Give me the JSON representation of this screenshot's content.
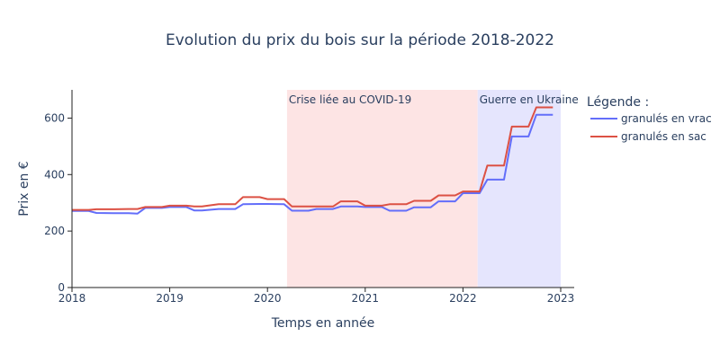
{
  "chart_data": {
    "type": "line",
    "title": "Evolution du prix du bois sur la période 2018-2022",
    "xlabel": "Temps en année",
    "ylabel": "Prix en €",
    "xlim": [
      2018,
      2023
    ],
    "ylim": [
      0,
      700
    ],
    "x_ticks": [
      2018,
      2019,
      2020,
      2021,
      2022,
      2023
    ],
    "x_tick_labels": [
      "2018",
      "2019",
      "2020",
      "2021",
      "2022",
      "2023"
    ],
    "y_ticks": [
      0,
      200,
      400,
      600
    ],
    "y_tick_labels": [
      "0",
      "200",
      "400",
      "600"
    ],
    "grid": false,
    "legend": {
      "title": "Légende :",
      "position": "right"
    },
    "shaded_regions": [
      {
        "label": "Crise liée au COVID-19",
        "x_start": 2020.2,
        "x_end": 2022.15,
        "color": "#fde4e4"
      },
      {
        "label": "Guerre en Ukraine",
        "x_start": 2022.15,
        "x_end": 2023.0,
        "color": "#e5e5fd"
      }
    ],
    "series": [
      {
        "name": "granulés en vrac",
        "color": "#636efa",
        "x": [
          2018.0,
          2018.17,
          2018.25,
          2018.42,
          2018.58,
          2018.67,
          2018.75,
          2018.92,
          2019.0,
          2019.17,
          2019.25,
          2019.33,
          2019.5,
          2019.67,
          2019.75,
          2019.92,
          2020.0,
          2020.17,
          2020.25,
          2020.42,
          2020.5,
          2020.67,
          2020.75,
          2020.92,
          2021.0,
          2021.17,
          2021.25,
          2021.42,
          2021.5,
          2021.67,
          2021.75,
          2021.92,
          2022.0,
          2022.17,
          2022.25,
          2022.42,
          2022.5,
          2022.67,
          2022.75,
          2022.92
        ],
        "y": [
          271,
          271,
          264,
          263,
          263,
          262,
          282,
          282,
          285,
          285,
          273,
          273,
          278,
          278,
          295,
          296,
          296,
          295,
          272,
          272,
          278,
          278,
          287,
          287,
          285,
          285,
          272,
          272,
          284,
          284,
          305,
          305,
          334,
          334,
          382,
          382,
          535,
          535,
          612,
          612
        ]
      },
      {
        "name": "granulés en sac",
        "color": "#dc5144",
        "x": [
          2018.0,
          2018.17,
          2018.25,
          2018.42,
          2018.58,
          2018.67,
          2018.75,
          2018.92,
          2019.0,
          2019.17,
          2019.25,
          2019.33,
          2019.5,
          2019.67,
          2019.75,
          2019.92,
          2020.0,
          2020.17,
          2020.25,
          2020.42,
          2020.5,
          2020.67,
          2020.75,
          2020.92,
          2021.0,
          2021.17,
          2021.25,
          2021.42,
          2021.5,
          2021.67,
          2021.75,
          2021.92,
          2022.0,
          2022.17,
          2022.25,
          2022.42,
          2022.5,
          2022.67,
          2022.75,
          2022.92
        ],
        "y": [
          275,
          275,
          277,
          277,
          278,
          278,
          285,
          285,
          290,
          290,
          287,
          287,
          295,
          295,
          320,
          320,
          313,
          313,
          287,
          287,
          287,
          287,
          305,
          305,
          290,
          290,
          295,
          295,
          307,
          307,
          326,
          326,
          340,
          340,
          432,
          432,
          570,
          570,
          638,
          638
        ]
      }
    ]
  }
}
